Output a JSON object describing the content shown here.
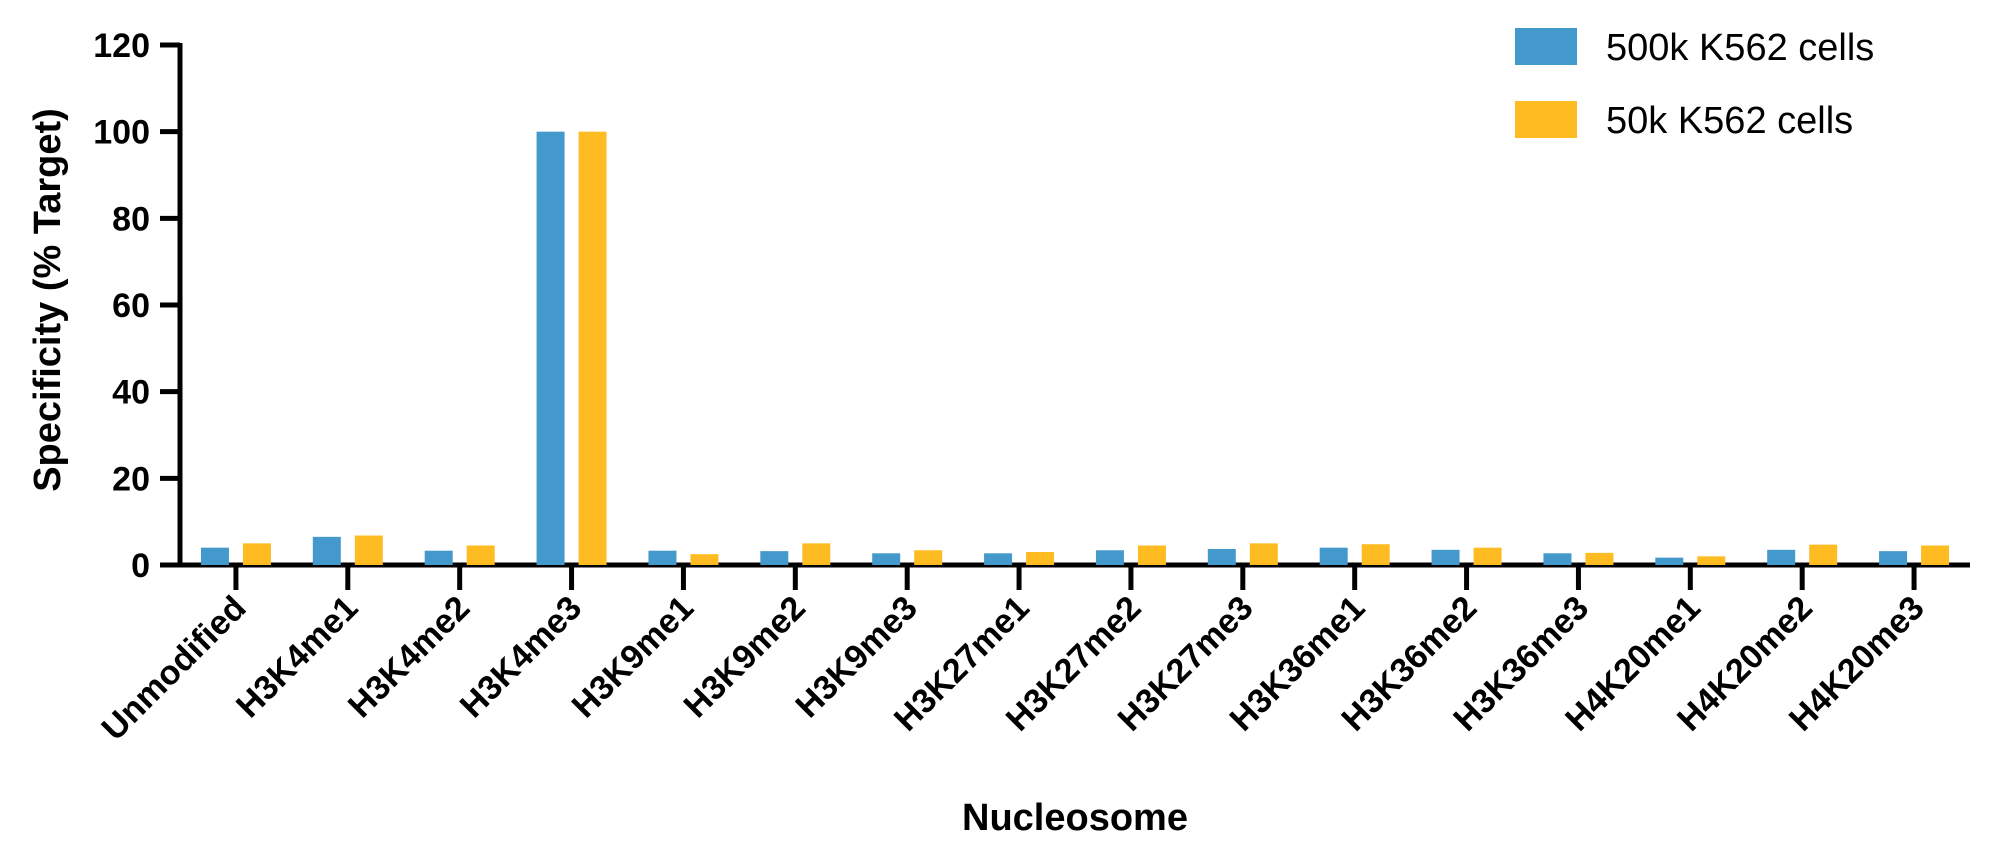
{
  "chart_data": {
    "type": "bar",
    "title": "",
    "xlabel": "Nucleosome",
    "ylabel": "Specificity (% Target)",
    "ylim": [
      0,
      120
    ],
    "yticks": [
      0,
      20,
      40,
      60,
      80,
      100,
      120
    ],
    "categories": [
      "Unmodified",
      "H3K4me1",
      "H3K4me2",
      "H3K4me3",
      "H3K9me1",
      "H3K9me2",
      "H3K9me3",
      "H3K27me1",
      "H3K27me2",
      "H3K27me3",
      "H3K36me1",
      "H3K36me2",
      "H3K36me3",
      "H4K20me1",
      "H4K20me2",
      "H4K20me3"
    ],
    "series": [
      {
        "name": "500k K562 cells",
        "color": "#4499CC",
        "values": [
          4.0,
          6.5,
          3.3,
          100,
          3.3,
          3.2,
          2.7,
          2.7,
          3.4,
          3.7,
          4.0,
          3.5,
          2.7,
          1.7,
          3.5,
          3.2
        ]
      },
      {
        "name": "50k K562 cells",
        "color": "#FFBB22",
        "values": [
          5.0,
          6.8,
          4.5,
          100,
          2.5,
          5.0,
          3.4,
          3.0,
          4.5,
          5.0,
          4.8,
          4.0,
          2.8,
          2.0,
          4.7,
          4.5
        ]
      }
    ],
    "legend_position": "top-right",
    "grid": false
  }
}
